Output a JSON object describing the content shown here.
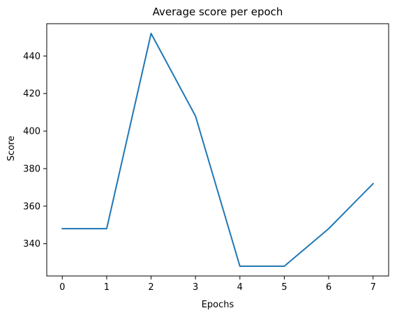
{
  "chart_data": {
    "type": "line",
    "title": "Average score per epoch",
    "xlabel": "Epochs",
    "ylabel": "Score",
    "x": [
      0,
      1,
      2,
      3,
      4,
      5,
      6,
      7
    ],
    "series": [
      {
        "values": [
          348,
          348,
          452,
          408,
          328,
          328,
          348,
          372
        ],
        "color": "#1f77b4"
      }
    ],
    "xlim": [
      -0.35,
      7.35
    ],
    "ylim": [
      322.8,
      457.2
    ],
    "xticks": [
      0,
      1,
      2,
      3,
      4,
      5,
      6,
      7
    ],
    "yticks": [
      340,
      360,
      380,
      400,
      420,
      440
    ],
    "grid": false,
    "legend": "none"
  }
}
